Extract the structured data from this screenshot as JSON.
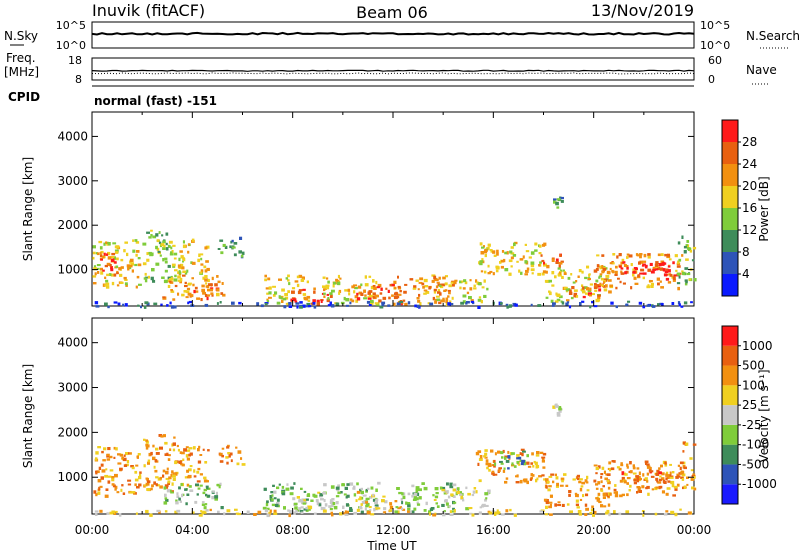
{
  "header": {
    "station": "Inuvik (fitACF)",
    "beam": "Beam 06",
    "date": "13/Nov/2019"
  },
  "sky_panel": {
    "left_label": "N.Sky",
    "right_label": "N.Search",
    "left_ticks": [
      "10^5",
      "10^0"
    ],
    "right_ticks": [
      "10^5",
      "10^0"
    ],
    "level": 0.55
  },
  "freq_panel": {
    "left_label_1": "Freq.",
    "left_label_2": "[MHz]",
    "right_label": "Nave",
    "left_ticks": [
      "18",
      "8"
    ],
    "right_ticks": [
      "60",
      "0"
    ],
    "freq_level": 0.42,
    "nave_level": 0.3
  },
  "cpid": {
    "label": "CPID",
    "value": "normal (fast) -151"
  },
  "chart_data": [
    {
      "type": "heatmap",
      "quantity": "power",
      "ylabel": "Slant Range [km]",
      "yticks": [
        1000,
        2000,
        3000,
        4000
      ],
      "ylim": [
        180,
        4550
      ],
      "xlim": [
        0,
        24
      ],
      "colorbar": {
        "label": "Power [dB]",
        "ticks": [
          "4",
          "8",
          "12",
          "16",
          "20",
          "24",
          "28"
        ],
        "colors": [
          "#0a1aff",
          "#2e54b8",
          "#3e8c5a",
          "#7fcc3a",
          "#f0d020",
          "#f29010",
          "#e86010",
          "#ff1a1a"
        ]
      },
      "clusters": [
        {
          "t0": 0.0,
          "t1": 1.9,
          "r0": 600,
          "r1": 1700,
          "level": 4
        },
        {
          "t0": 0.3,
          "t1": 1.3,
          "r0": 900,
          "r1": 1400,
          "level": 6
        },
        {
          "t0": 2.0,
          "t1": 3.4,
          "r0": 700,
          "r1": 1900,
          "level": 3
        },
        {
          "t0": 3.4,
          "t1": 4.6,
          "r0": 800,
          "r1": 1700,
          "level": 4
        },
        {
          "t0": 2.8,
          "t1": 5.2,
          "r0": 350,
          "r1": 900,
          "level": 5
        },
        {
          "t0": 4.0,
          "t1": 5.0,
          "r0": 350,
          "r1": 700,
          "level": 6
        },
        {
          "t0": 5.0,
          "t1": 6.0,
          "r0": 1300,
          "r1": 1750,
          "level": 2
        },
        {
          "t0": 6.8,
          "t1": 8.6,
          "r0": 250,
          "r1": 900,
          "level": 4
        },
        {
          "t0": 7.8,
          "t1": 9.6,
          "r0": 250,
          "r1": 600,
          "level": 6
        },
        {
          "t0": 9.0,
          "t1": 11.4,
          "r0": 250,
          "r1": 900,
          "level": 4
        },
        {
          "t0": 10.5,
          "t1": 12.4,
          "r0": 250,
          "r1": 700,
          "level": 6
        },
        {
          "t0": 12.0,
          "t1": 14.4,
          "r0": 250,
          "r1": 900,
          "level": 5
        },
        {
          "t0": 13.6,
          "t1": 15.8,
          "r0": 300,
          "r1": 800,
          "level": 4
        },
        {
          "t0": 15.3,
          "t1": 18.0,
          "r0": 900,
          "r1": 1650,
          "level": 4
        },
        {
          "t0": 17.6,
          "t1": 18.8,
          "r0": 1100,
          "r1": 1400,
          "level": 6
        },
        {
          "t0": 18.3,
          "t1": 18.7,
          "r0": 2400,
          "r1": 2650,
          "level": 2
        },
        {
          "t0": 18.0,
          "t1": 20.6,
          "r0": 300,
          "r1": 1100,
          "level": 4
        },
        {
          "t0": 19.0,
          "t1": 20.4,
          "r0": 400,
          "r1": 700,
          "level": 6
        },
        {
          "t0": 20.0,
          "t1": 23.5,
          "r0": 600,
          "r1": 1400,
          "level": 5
        },
        {
          "t0": 21.0,
          "t1": 23.4,
          "r0": 800,
          "r1": 1200,
          "level": 7
        },
        {
          "t0": 23.3,
          "t1": 24.0,
          "r0": 700,
          "r1": 1800,
          "level": 3
        },
        {
          "t0": 0.0,
          "t1": 24.0,
          "r0": 180,
          "r1": 300,
          "level": 1
        }
      ]
    },
    {
      "type": "heatmap",
      "quantity": "velocity",
      "ylabel": "Slant Range [km]",
      "yticks": [
        1000,
        2000,
        3000,
        4000
      ],
      "ylim": [
        180,
        4550
      ],
      "xlim": [
        0,
        24
      ],
      "xlabel": "Time UT",
      "xticks": [
        "00:00",
        "04:00",
        "08:00",
        "12:00",
        "16:00",
        "20:00",
        "00:00"
      ],
      "colorbar": {
        "label": "Velocity [m s⁻¹]",
        "ticks": [
          "1000",
          "500",
          "100",
          "25",
          "-25",
          "-100",
          "-500",
          "-1000"
        ],
        "colors": [
          "#1a1aff",
          "#2e54b8",
          "#3e8c5a",
          "#7fcc3a",
          "#c8c8c8",
          "#f0d020",
          "#f29010",
          "#e86010",
          "#ff1a1a"
        ]
      },
      "clusters": [
        {
          "t0": 0.0,
          "t1": 1.9,
          "r0": 600,
          "r1": 1700,
          "level": 6
        },
        {
          "t0": 2.0,
          "t1": 3.4,
          "r0": 700,
          "r1": 2000,
          "level": 6
        },
        {
          "t0": 3.4,
          "t1": 4.6,
          "r0": 800,
          "r1": 1700,
          "level": 6
        },
        {
          "t0": 2.8,
          "t1": 5.2,
          "r0": 350,
          "r1": 900,
          "level": 3
        },
        {
          "t0": 5.0,
          "t1": 6.0,
          "r0": 1300,
          "r1": 1750,
          "level": 6
        },
        {
          "t0": 6.8,
          "t1": 8.6,
          "r0": 250,
          "r1": 900,
          "level": 3
        },
        {
          "t0": 7.8,
          "t1": 9.6,
          "r0": 250,
          "r1": 700,
          "level": 4
        },
        {
          "t0": 9.0,
          "t1": 11.4,
          "r0": 250,
          "r1": 900,
          "level": 3
        },
        {
          "t0": 10.5,
          "t1": 12.4,
          "r0": 250,
          "r1": 700,
          "level": 5
        },
        {
          "t0": 12.0,
          "t1": 14.4,
          "r0": 250,
          "r1": 900,
          "level": 3
        },
        {
          "t0": 13.6,
          "t1": 15.8,
          "r0": 300,
          "r1": 800,
          "level": 4
        },
        {
          "t0": 15.3,
          "t1": 18.0,
          "r0": 900,
          "r1": 1650,
          "level": 6
        },
        {
          "t0": 16.0,
          "t1": 17.4,
          "r0": 1200,
          "r1": 1600,
          "level": 2
        },
        {
          "t0": 18.3,
          "t1": 18.7,
          "r0": 2400,
          "r1": 2650,
          "level": 4
        },
        {
          "t0": 18.0,
          "t1": 20.6,
          "r0": 300,
          "r1": 1100,
          "level": 6
        },
        {
          "t0": 20.0,
          "t1": 23.5,
          "r0": 600,
          "r1": 1400,
          "level": 6
        },
        {
          "t0": 21.0,
          "t1": 23.4,
          "r0": 900,
          "r1": 1200,
          "level": 7
        },
        {
          "t0": 23.3,
          "t1": 24.0,
          "r0": 700,
          "r1": 1800,
          "level": 6
        },
        {
          "t0": 0.0,
          "t1": 24.0,
          "r0": 180,
          "r1": 300,
          "level": 5
        }
      ]
    }
  ]
}
